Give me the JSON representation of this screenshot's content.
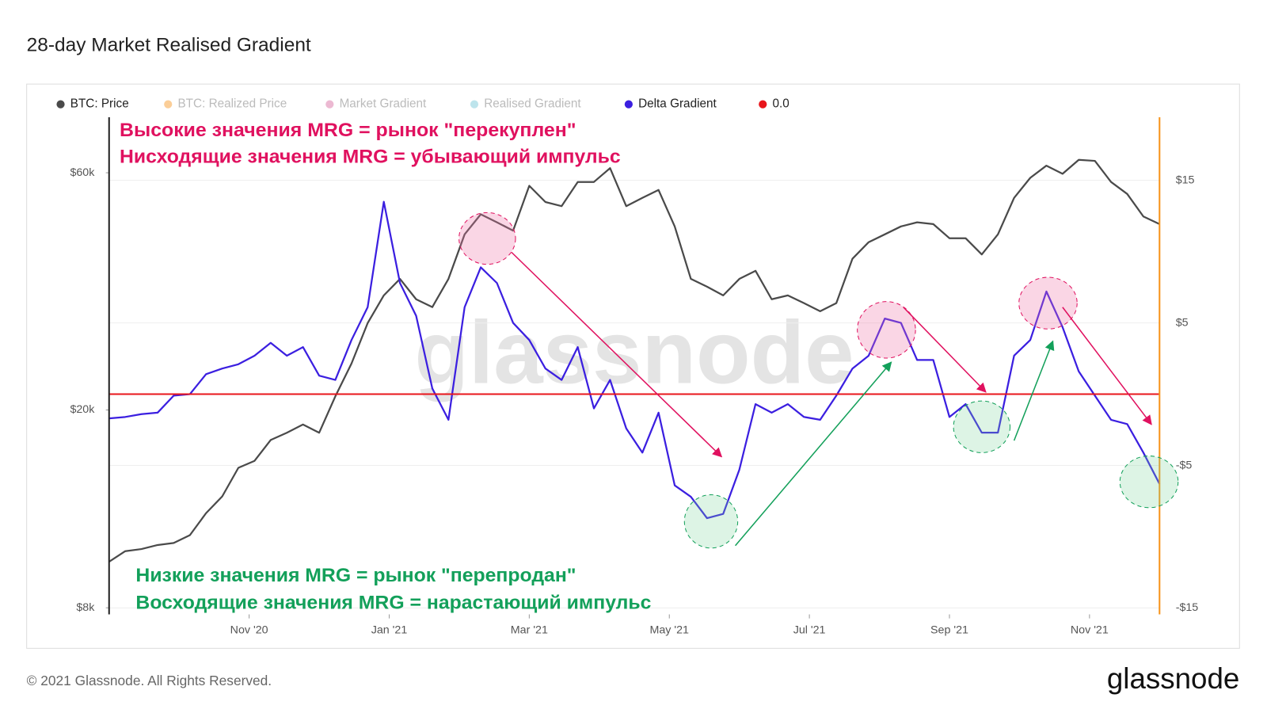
{
  "chart_data": {
    "type": "line",
    "title": "28-day Market Realised Gradient",
    "watermark": "glassnode",
    "footer": "© 2021 Glassnode. All Rights Reserved.",
    "logo": "glassnode",
    "annotations": {
      "top": [
        "Высокие значения MRG = рынок \"перекуплен\"",
        "Нисходящие значения MRG = убывающий импульс"
      ],
      "bottom": [
        "Низкие значения MRG = рынок \"перепродан\"",
        "Восходящие значения MRG = нарастающий импульс"
      ]
    },
    "xlim": [
      "2020-09",
      "2021-12"
    ],
    "xticks": [
      {
        "value": "2020-11",
        "label": "Nov '20"
      },
      {
        "value": "2021-01",
        "label": "Jan '21"
      },
      {
        "value": "2021-03",
        "label": "Mar '21"
      },
      {
        "value": "2021-05",
        "label": "May '21"
      },
      {
        "value": "2021-07",
        "label": "Jul '21"
      },
      {
        "value": "2021-09",
        "label": "Sep '21"
      },
      {
        "value": "2021-11",
        "label": "Nov '21"
      }
    ],
    "ylim": [
      7760,
      77600
    ],
    "yscale": "log",
    "yticks": [
      {
        "value": 8000,
        "label": "$8k"
      },
      {
        "value": 20000,
        "label": "$20k"
      },
      {
        "value": 60000,
        "label": "$60k"
      }
    ],
    "y2lim": [
      -15.45,
      19.43
    ],
    "y2ticks": [
      {
        "value": 15,
        "label": "$15"
      },
      {
        "value": 5,
        "label": "$5"
      },
      {
        "value": -5,
        "label": "-$5"
      },
      {
        "value": -15,
        "label": "-$15"
      }
    ],
    "grid": true,
    "series": [
      {
        "name": "BTC: Price",
        "color": "#4a4a4a",
        "values": [
          9900,
          10400,
          10500,
          10700,
          10800,
          11200,
          12400,
          13400,
          15300,
          15800,
          17400,
          18000,
          18700,
          18000,
          21300,
          24800,
          29900,
          34000,
          36700,
          33400,
          32200,
          36700,
          45100,
          49500,
          47700,
          45900,
          56500,
          52400,
          51400,
          57500,
          57500,
          61300,
          51400,
          53400,
          55400,
          46800,
          36700,
          35400,
          34000,
          36700,
          38100,
          33400,
          34000,
          32800,
          31600,
          32800,
          40300,
          43500,
          45100,
          46800,
          47700,
          47300,
          44300,
          44300,
          41100,
          45100,
          53400,
          58600,
          62000,
          59700,
          63700,
          63400,
          57500,
          54400,
          49000,
          47300
        ]
      },
      {
        "name": "BTC: Realized Price",
        "color": "#f7931a",
        "hidden": true
      },
      {
        "name": "Market Gradient",
        "color": "#d4649c",
        "hidden": true
      },
      {
        "name": "Realised Gradient",
        "color": "#6cc3d5",
        "hidden": true
      },
      {
        "name": "Delta Gradient",
        "color": "#3b1fe0",
        "axis": "y2",
        "values": [
          -1.7,
          -1.6,
          -1.4,
          -1.3,
          -0.1,
          0.0,
          1.4,
          1.8,
          2.1,
          2.7,
          3.6,
          2.7,
          3.3,
          1.3,
          1.0,
          3.8,
          6.1,
          13.5,
          7.8,
          5.5,
          0.4,
          -1.8,
          6.1,
          8.9,
          7.8,
          5.0,
          3.8,
          1.8,
          1.0,
          3.3,
          -1.0,
          1.0,
          -2.4,
          -4.1,
          -1.3,
          -6.4,
          -7.2,
          -8.7,
          -8.4,
          -5.3,
          -0.7,
          -1.3,
          -0.7,
          -1.6,
          -1.8,
          -0.1,
          1.8,
          2.7,
          5.3,
          5.0,
          2.4,
          2.4,
          -1.6,
          -0.7,
          -2.7,
          -2.7,
          2.7,
          3.8,
          7.2,
          4.7,
          1.6,
          -0.1,
          -1.8,
          -2.1,
          -4.1,
          -6.3
        ]
      },
      {
        "name": "0.0",
        "color": "#e8151b",
        "axis": "y2",
        "value": 0
      }
    ]
  }
}
